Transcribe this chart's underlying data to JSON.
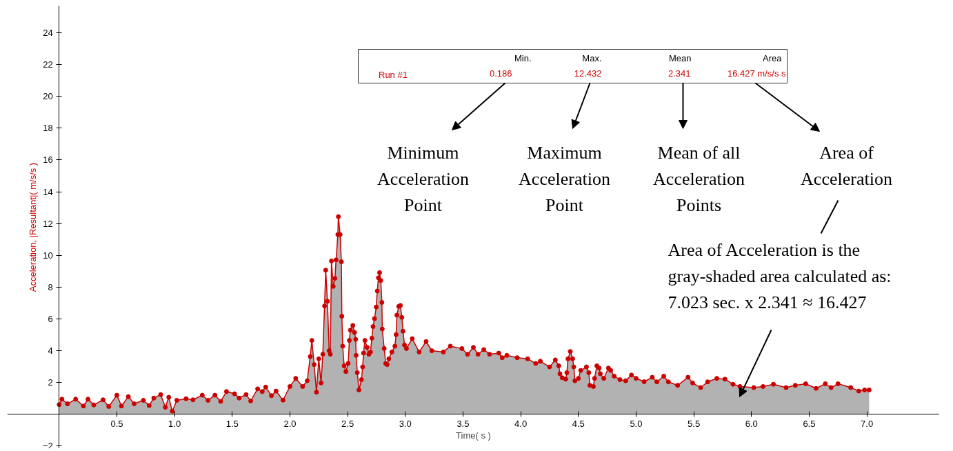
{
  "chart_data": {
    "type": "area",
    "xlabel": "Time( s )",
    "ylabel": "Acceleration, |Resultant|( m/s/s )",
    "xlim": [
      -0.45,
      7.63
    ],
    "ylim": [
      -2.17,
      25.7
    ],
    "xticks": [
      0.5,
      {
        "value": 1,
        "label": "1.0"
      },
      1.5,
      {
        "value": 2,
        "label": "2.0"
      },
      2.5,
      {
        "value": 3,
        "label": "3.0"
      },
      3.5,
      {
        "value": 4,
        "label": "4.0"
      },
      4.5,
      {
        "value": 5,
        "label": "5.0"
      },
      5.5,
      {
        "value": 6,
        "label": "6.0"
      },
      6.5,
      {
        "value": 7,
        "label": "7.0"
      }
    ],
    "yticks": [
      -2,
      2,
      4,
      6,
      8,
      10,
      12,
      14,
      16,
      18,
      20,
      22,
      24
    ],
    "grid": false,
    "legend": "top",
    "marker": "circle",
    "line_style": "solid",
    "series": [
      {
        "name": "Run #1",
        "color": "#cc0000",
        "x": [
          0,
          0.024,
          0.072,
          0.143,
          0.21,
          0.25,
          0.3,
          0.38,
          0.43,
          0.5,
          0.54,
          0.6,
          0.65,
          0.73,
          0.78,
          0.82,
          0.88,
          0.92,
          0.95,
          0.98,
          1.02,
          1.1,
          1.16,
          1.24,
          1.29,
          1.35,
          1.4,
          1.45,
          1.52,
          1.56,
          1.62,
          1.66,
          1.72,
          1.76,
          1.79,
          1.84,
          1.88,
          1.94,
          2.0,
          2.05,
          2.11,
          2.15,
          2.176,
          2.19,
          2.21,
          2.23,
          2.25,
          2.27,
          2.285,
          2.3,
          2.31,
          2.325,
          2.34,
          2.35,
          2.36,
          2.375,
          2.39,
          2.4,
          2.415,
          2.42,
          2.435,
          2.446,
          2.45,
          2.457,
          2.47,
          2.485,
          2.505,
          2.515,
          2.524,
          2.545,
          2.56,
          2.57,
          2.574,
          2.584,
          2.598,
          2.62,
          2.63,
          2.638,
          2.65,
          2.67,
          2.684,
          2.698,
          2.71,
          2.72,
          2.733,
          2.748,
          2.757,
          2.767,
          2.777,
          2.787,
          2.797,
          2.8,
          2.817,
          2.83,
          2.843,
          2.857,
          2.883,
          2.91,
          2.92,
          2.927,
          2.943,
          2.957,
          2.97,
          2.98,
          2.993,
          3.01,
          3.06,
          3.12,
          3.18,
          3.23,
          3.33,
          3.39,
          3.49,
          3.54,
          3.59,
          3.63,
          3.68,
          3.73,
          3.81,
          3.84,
          3.88,
          3.97,
          4.06,
          4.13,
          4.17,
          4.25,
          4.3,
          4.33,
          4.34,
          4.36,
          4.39,
          4.4,
          4.41,
          4.43,
          4.45,
          4.46,
          4.47,
          4.5,
          4.52,
          4.57,
          4.59,
          4.6,
          4.63,
          4.64,
          4.66,
          4.68,
          4.69,
          4.72,
          4.76,
          4.78,
          4.81,
          4.86,
          4.91,
          4.96,
          5.0,
          5.07,
          5.14,
          5.18,
          5.24,
          5.28,
          5.36,
          5.45,
          5.49,
          5.56,
          5.62,
          5.7,
          5.77,
          5.84,
          5.9,
          6.02,
          6.1,
          6.19,
          6.3,
          6.38,
          6.47,
          6.56,
          6.64,
          6.69,
          6.75,
          6.86,
          6.93,
          6.98,
          7.02
        ],
        "values": [
          0.6,
          0.94,
          0.65,
          0.94,
          0.51,
          0.94,
          0.58,
          0.9,
          0.48,
          1.19,
          0.51,
          1.1,
          0.65,
          0.87,
          0.54,
          1.01,
          1.23,
          0.43,
          1.06,
          0.186,
          0.87,
          0.97,
          0.9,
          1.19,
          0.87,
          1.19,
          0.8,
          1.42,
          1.28,
          1.01,
          1.23,
          0.83,
          1.59,
          1.42,
          1.7,
          1.16,
          1.45,
          0.88,
          1.74,
          2.25,
          1.74,
          2.1,
          3.62,
          4.64,
          3.12,
          1.38,
          3.48,
          1.96,
          3.77,
          6.81,
          9.06,
          7.1,
          3.99,
          3.77,
          9.64,
          8.04,
          8.55,
          9.71,
          11.3,
          12.432,
          11.3,
          9.59,
          6.16,
          4.28,
          3.04,
          2.68,
          3.19,
          4.64,
          5.29,
          5.58,
          5.14,
          4.71,
          3.7,
          2.61,
          1.52,
          2.17,
          2.97,
          3.84,
          4.64,
          4.2,
          3.77,
          3.91,
          4.78,
          5.51,
          6.01,
          6.74,
          7.75,
          8.58,
          8.91,
          8.41,
          7.03,
          5.36,
          4.13,
          3.19,
          3.12,
          3.48,
          3.91,
          4.28,
          5.0,
          6.23,
          6.78,
          6.84,
          6.09,
          5.22,
          4.35,
          4.13,
          4.75,
          3.91,
          4.57,
          3.99,
          3.91,
          4.28,
          4.13,
          3.77,
          4.2,
          3.77,
          4.06,
          3.77,
          3.84,
          3.55,
          3.7,
          3.55,
          3.48,
          3.19,
          3.33,
          2.97,
          3.41,
          3.04,
          2.54,
          2.29,
          2.2,
          2.61,
          3.48,
          3.94,
          3.48,
          2.97,
          2.1,
          2.25,
          2.75,
          2.97,
          2.61,
          1.81,
          1.74,
          2.25,
          3.04,
          2.9,
          2.54,
          2.25,
          2.9,
          2.75,
          2.39,
          2.17,
          2.1,
          2.46,
          2.25,
          2.04,
          2.32,
          2.03,
          2.39,
          2.03,
          1.81,
          2.32,
          1.96,
          1.67,
          2.03,
          2.25,
          2.2,
          1.88,
          1.74,
          1.67,
          1.74,
          1.88,
          1.67,
          1.81,
          1.91,
          1.62,
          1.91,
          1.67,
          1.91,
          1.67,
          1.45,
          1.52,
          1.52
        ]
      }
    ],
    "annotations": [
      "Min.",
      "Max.",
      "Mean",
      "Area",
      "0.186",
      "12.432",
      "2.341",
      "16.427 m/s/s s",
      "Minimum\nAcceleration\nPoint",
      "Maximum\nAcceleration\nPoint",
      "Mean of all\nAcceleration\nPoints",
      "Area of\nAcceleration",
      "Area of Acceleration is the\ngray-shaded area calculated as:\n7.023 sec. x 2.341 ≈  16.427"
    ]
  }
}
